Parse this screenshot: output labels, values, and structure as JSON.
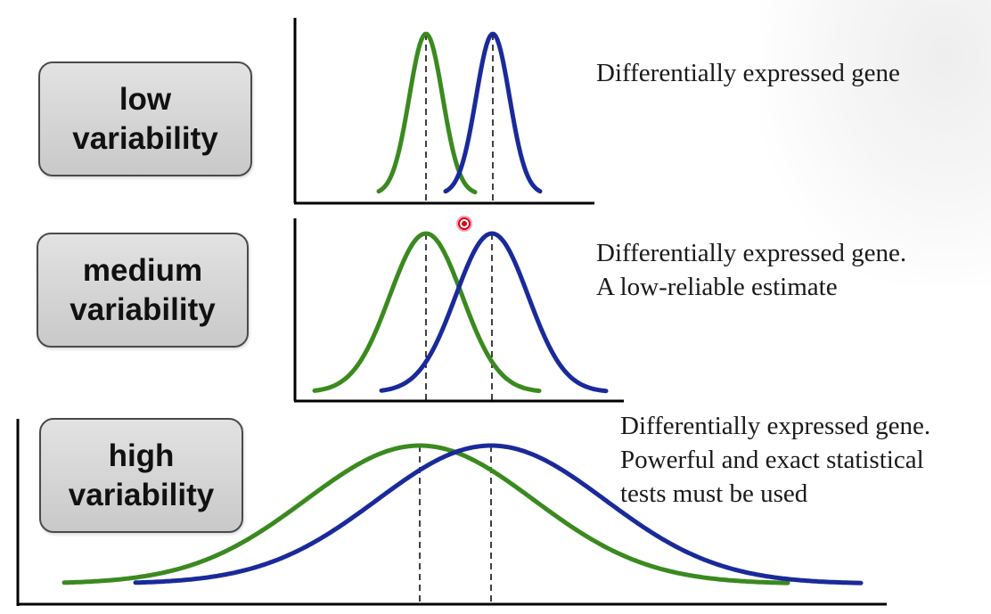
{
  "labels": {
    "low": [
      "low",
      "variability"
    ],
    "medium": [
      "medium",
      "variability"
    ],
    "high": [
      "high",
      "variability"
    ]
  },
  "descriptions": {
    "low": [
      "Differentially expressed gene"
    ],
    "medium": [
      "Differentially expressed gene.",
      "A low-reliable estimate"
    ],
    "high": [
      "Differentially expressed gene.",
      "Powerful and exact statistical",
      "tests must be used"
    ]
  },
  "colors": {
    "group_a": "#3a8a1f",
    "group_b": "#1a2a9a",
    "axis": "#000000"
  },
  "curves": {
    "low": {
      "mean_a": 0,
      "mean_b": 1,
      "sd": 0.25
    },
    "medium": {
      "mean_a": 0,
      "mean_b": 1,
      "sd": 0.55
    },
    "high": {
      "mean_a": 0,
      "mean_b": 1,
      "sd": 1.6
    }
  }
}
